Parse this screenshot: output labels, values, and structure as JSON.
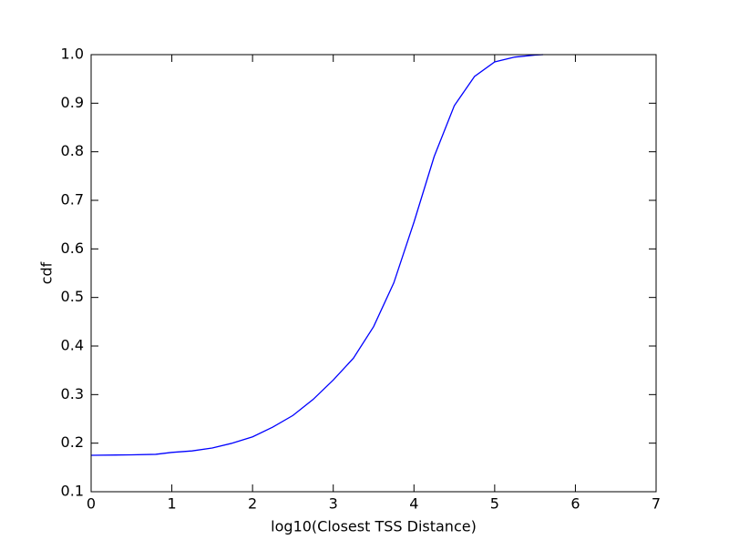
{
  "chart_data": {
    "type": "line",
    "xlabel": "log10(Closest TSS Distance)",
    "ylabel": "cdf",
    "x": [
      0,
      0.5,
      0.8,
      1.0,
      1.25,
      1.5,
      1.75,
      2.0,
      2.25,
      2.5,
      2.75,
      3.0,
      3.25,
      3.5,
      3.75,
      4.0,
      4.25,
      4.5,
      4.75,
      5.0,
      5.25,
      5.5,
      5.6
    ],
    "series": [
      {
        "color": "#0000ff",
        "values": [
          0.175,
          0.176,
          0.177,
          0.181,
          0.184,
          0.19,
          0.2,
          0.213,
          0.233,
          0.257,
          0.29,
          0.33,
          0.375,
          0.44,
          0.53,
          0.655,
          0.79,
          0.895,
          0.955,
          0.985,
          0.995,
          0.999,
          1.0
        ]
      }
    ],
    "xlim": [
      0,
      7
    ],
    "xticks": [
      0,
      1,
      2,
      3,
      4,
      5,
      6,
      7
    ],
    "ylim": [
      0.1,
      1.0
    ],
    "yticks": [
      0.1,
      0.2,
      0.3,
      0.4,
      0.5,
      0.6,
      0.7,
      0.8,
      0.9,
      {
        "value": 1.0,
        "label": "1.0"
      }
    ]
  }
}
